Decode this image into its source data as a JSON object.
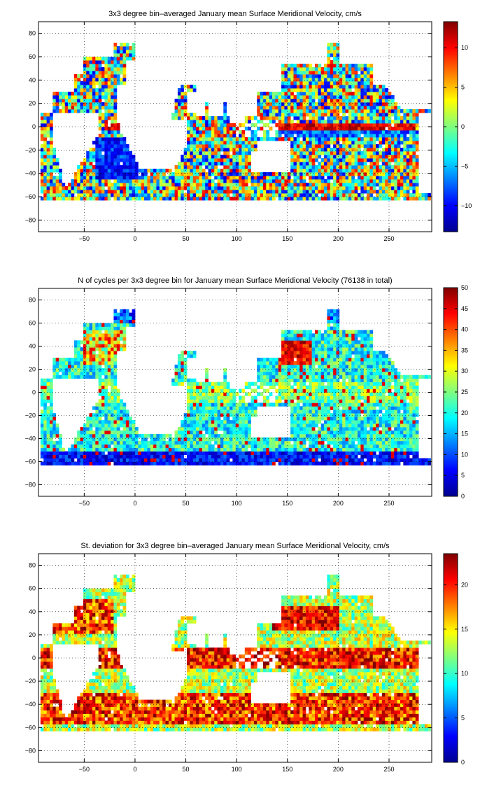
{
  "chart_data": [
    {
      "type": "heatmap",
      "title": "3x3 degree bin–averaged January mean Surface Meridional Velocity, cm/s",
      "xlim": [
        -95,
        292
      ],
      "ylim": [
        -90,
        90
      ],
      "x_ticks": [
        -50,
        0,
        50,
        100,
        150,
        200,
        250
      ],
      "y_ticks": [
        -80,
        -60,
        -40,
        -20,
        0,
        20,
        40,
        60,
        80
      ],
      "grid": "on (dotted)",
      "colormap": "jet",
      "clim": [
        -13.3,
        13.3
      ],
      "colorbar_ticks": [
        -10,
        -5,
        0,
        5,
        10
      ],
      "colorbar_position": "right",
      "note": "3x3 degree bins; mostly noisy ±10 cm/s; persistent northward band along the equator in the Pacific (150–270) and Atlantic; southward flows in the South Atlantic subtropical gyre"
    },
    {
      "type": "heatmap",
      "title": "N of cycles per 3x3 degree bin for January mean Surface Meridional Velocity (76138 in total)",
      "xlim": [
        -95,
        292
      ],
      "ylim": [
        -90,
        90
      ],
      "x_ticks": [
        -50,
        0,
        50,
        100,
        150,
        200,
        250
      ],
      "y_ticks": [
        -80,
        -60,
        -40,
        -20,
        0,
        20,
        40,
        60,
        80
      ],
      "grid": "on (dotted)",
      "colormap": "jet",
      "clim": [
        0,
        50
      ],
      "colorbar_ticks": [
        0,
        5,
        10,
        15,
        20,
        25,
        30,
        35,
        40,
        45,
        50
      ],
      "colorbar_position": "right",
      "note": "high counts (≈50) in Kuroshio Extension near 150–170E 30–45N; low counts (≤5) south of 55S"
    },
    {
      "type": "heatmap",
      "title": "St. deviation for 3x3 degree bin–averaged January mean Surface Meridional Velocity, cm/s",
      "xlim": [
        -95,
        292
      ],
      "ylim": [
        -90,
        90
      ],
      "x_ticks": [
        -50,
        0,
        50,
        100,
        150,
        200,
        250
      ],
      "y_ticks": [
        -80,
        -60,
        -40,
        -20,
        0,
        20,
        40,
        60,
        80
      ],
      "grid": "on (dotted)",
      "colormap": "jet",
      "clim": [
        0,
        23.5
      ],
      "colorbar_ticks": [
        0,
        5,
        10,
        15,
        20
      ],
      "colorbar_position": "right",
      "note": "high variability (≥20) along equatorial band, western boundary currents and Southern Ocean 30–55S; lower (10–15) in subtropical gyres"
    }
  ]
}
